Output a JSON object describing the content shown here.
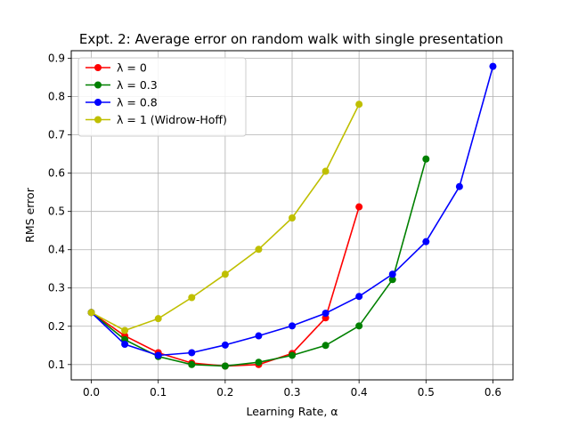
{
  "chart_data": {
    "type": "line",
    "title": "Expt. 2: Average error on random walk with single presentation",
    "xlabel": "Learning Rate, α",
    "ylabel": "RMS error",
    "xlim": [
      -0.03,
      0.63
    ],
    "ylim": [
      0.06,
      0.92
    ],
    "xticks": [
      0.0,
      0.1,
      0.2,
      0.3,
      0.4,
      0.5,
      0.6
    ],
    "xtick_labels": [
      "0.0",
      "0.1",
      "0.2",
      "0.3",
      "0.4",
      "0.5",
      "0.6"
    ],
    "yticks": [
      0.1,
      0.2,
      0.3,
      0.4,
      0.5,
      0.6,
      0.7,
      0.8,
      0.9
    ],
    "ytick_labels": [
      "0.1",
      "0.2",
      "0.3",
      "0.4",
      "0.5",
      "0.6",
      "0.7",
      "0.8",
      "0.9"
    ],
    "grid": true,
    "legend_position": "top-left",
    "series": [
      {
        "name": "λ = 0",
        "color": "#ff0000",
        "x": [
          0.0,
          0.05,
          0.1,
          0.15,
          0.2,
          0.25,
          0.3,
          0.35,
          0.4
        ],
        "y": [
          0.236,
          0.175,
          0.131,
          0.104,
          0.096,
          0.1,
          0.129,
          0.222,
          0.512
        ]
      },
      {
        "name": "λ = 0.3",
        "color": "#008000",
        "x": [
          0.0,
          0.05,
          0.1,
          0.15,
          0.2,
          0.25,
          0.3,
          0.35,
          0.4,
          0.45,
          0.5
        ],
        "y": [
          0.236,
          0.165,
          0.121,
          0.1,
          0.096,
          0.106,
          0.124,
          0.15,
          0.201,
          0.322,
          0.637
        ]
      },
      {
        "name": "λ = 0.8",
        "color": "#0000ff",
        "x": [
          0.0,
          0.05,
          0.1,
          0.15,
          0.2,
          0.25,
          0.3,
          0.35,
          0.4,
          0.45,
          0.5,
          0.55,
          0.6
        ],
        "y": [
          0.236,
          0.153,
          0.124,
          0.131,
          0.151,
          0.175,
          0.201,
          0.234,
          0.278,
          0.336,
          0.421,
          0.565,
          0.879
        ]
      },
      {
        "name": "λ = 1 (Widrow-Hoff)",
        "color": "#bfbf00",
        "x": [
          0.0,
          0.05,
          0.1,
          0.15,
          0.2,
          0.25,
          0.3,
          0.35,
          0.4
        ],
        "y": [
          0.236,
          0.189,
          0.22,
          0.275,
          0.336,
          0.401,
          0.483,
          0.605,
          0.78
        ]
      }
    ]
  }
}
